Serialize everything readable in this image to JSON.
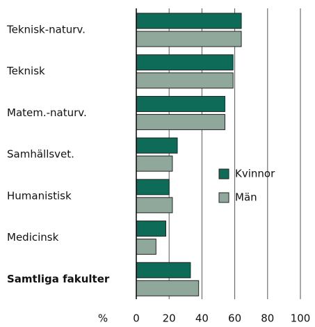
{
  "chart_data": {
    "type": "barh",
    "categories": [
      "Teknisk-naturv.",
      "Teknisk",
      "Matem.-naturv.",
      "Samhällsvet.",
      "Humanistisk",
      "Medicinsk",
      "Samtliga fakulter"
    ],
    "series": [
      {
        "name": "Kvinnor",
        "color": "#0e6b57",
        "values": [
          64,
          59,
          54,
          25,
          20,
          18,
          33
        ]
      },
      {
        "name": "Män",
        "color": "#8fa89b",
        "values": [
          64,
          59,
          54,
          22,
          22,
          12,
          38
        ]
      }
    ],
    "xlabel": "%",
    "xlim": [
      0,
      100
    ],
    "xticks": [
      0,
      20,
      40,
      60,
      80,
      100
    ],
    "grid": true
  }
}
